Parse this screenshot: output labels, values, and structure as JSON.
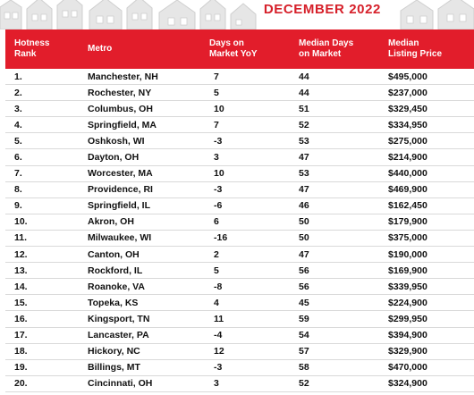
{
  "banner": {
    "title": "DECEMBER 2022"
  },
  "table": {
    "headers": {
      "rank": "Hotness\nRank",
      "metro": "Metro",
      "days_yoy": "Days on\nMarket YoY",
      "median_days": "Median Days\non Market",
      "median_price": "Median\nListing Price"
    },
    "rows": [
      {
        "rank": "1.",
        "metro": "Manchester, NH",
        "yoy": "7",
        "days": "44",
        "price": "$495,000"
      },
      {
        "rank": "2.",
        "metro": "Rochester, NY",
        "yoy": "5",
        "days": "44",
        "price": "$237,000"
      },
      {
        "rank": "3.",
        "metro": "Columbus, OH",
        "yoy": "10",
        "days": "51",
        "price": "$329,450"
      },
      {
        "rank": "4.",
        "metro": "Springfield, MA",
        "yoy": "7",
        "days": "52",
        "price": "$334,950"
      },
      {
        "rank": "5.",
        "metro": "Oshkosh, WI",
        "yoy": "-3",
        "days": "53",
        "price": "$275,000"
      },
      {
        "rank": "6.",
        "metro": "Dayton, OH",
        "yoy": "3",
        "days": "47",
        "price": "$214,900"
      },
      {
        "rank": "7.",
        "metro": "Worcester, MA",
        "yoy": "10",
        "days": "53",
        "price": "$440,000"
      },
      {
        "rank": "8.",
        "metro": "Providence, RI",
        "yoy": "-3",
        "days": "47",
        "price": "$469,900"
      },
      {
        "rank": "9.",
        "metro": "Springfield, IL",
        "yoy": "-6",
        "days": "46",
        "price": "$162,450"
      },
      {
        "rank": "10.",
        "metro": "Akron, OH",
        "yoy": "6",
        "days": "50",
        "price": "$179,900"
      },
      {
        "rank": "11.",
        "metro": "Milwaukee, WI",
        "yoy": "-16",
        "days": "50",
        "price": "$375,000"
      },
      {
        "rank": "12.",
        "metro": "Canton, OH",
        "yoy": "2",
        "days": "47",
        "price": "$190,000"
      },
      {
        "rank": "13.",
        "metro": "Rockford, IL",
        "yoy": "5",
        "days": "56",
        "price": "$169,900"
      },
      {
        "rank": "14.",
        "metro": "Roanoke, VA",
        "yoy": "-8",
        "days": "56",
        "price": "$339,950"
      },
      {
        "rank": "15.",
        "metro": "Topeka, KS",
        "yoy": "4",
        "days": "45",
        "price": "$224,900"
      },
      {
        "rank": "16.",
        "metro": "Kingsport, TN",
        "yoy": "11",
        "days": "59",
        "price": "$299,950"
      },
      {
        "rank": "17.",
        "metro": "Lancaster, PA",
        "yoy": "-4",
        "days": "54",
        "price": "$394,900"
      },
      {
        "rank": "18.",
        "metro": "Hickory, NC",
        "yoy": "12",
        "days": "57",
        "price": "$329,900"
      },
      {
        "rank": "19.",
        "metro": "Billings, MT",
        "yoy": "-3",
        "days": "58",
        "price": "$470,000"
      },
      {
        "rank": "20.",
        "metro": "Cincinnati, OH",
        "yoy": "3",
        "days": "52",
        "price": "$324,900"
      }
    ]
  },
  "colors": {
    "header_bg": "#e21d2b",
    "title_red": "#d6202a",
    "house_gray": "#e3e3e3"
  }
}
